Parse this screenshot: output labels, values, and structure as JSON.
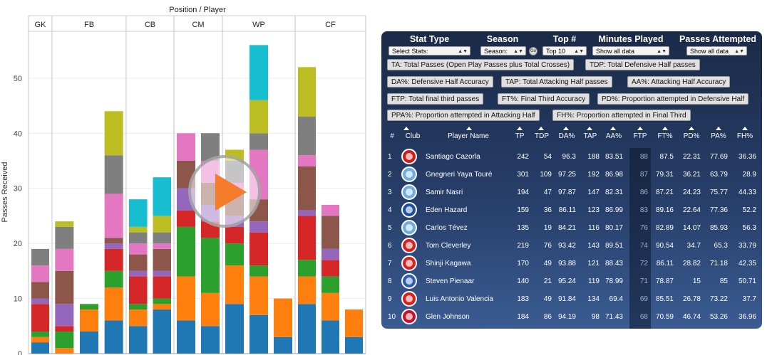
{
  "chart": {
    "header": "Position  /  Player",
    "ylabel": "Passes Received",
    "positions": [
      "GK",
      "FB",
      "CB",
      "CM",
      "WP",
      "CF"
    ],
    "yticks": [
      "0",
      "10",
      "20",
      "30",
      "40",
      "50"
    ]
  },
  "chart_data": {
    "type": "bar",
    "stacked": true,
    "title": "Position  /  Player",
    "ylabel": "Passes Received",
    "ylim": [
      0,
      58
    ],
    "groups": [
      "GK",
      "FB",
      "CB",
      "CM",
      "WP",
      "CF"
    ],
    "bars": [
      {
        "group": "GK",
        "segments": [
          2,
          1,
          1,
          5,
          1,
          3,
          3,
          3
        ]
      },
      {
        "group": "FB",
        "segments": [
          0,
          1,
          3,
          1,
          4,
          6,
          4,
          4,
          1
        ]
      },
      {
        "group": "FB",
        "segments": [
          4,
          4,
          1
        ]
      },
      {
        "group": "FB",
        "segments": [
          6,
          6,
          3,
          4,
          1,
          1,
          8,
          7,
          8
        ]
      },
      {
        "group": "CB",
        "segments": [
          5,
          3,
          1,
          5,
          1,
          3,
          2,
          2,
          1,
          5
        ]
      },
      {
        "group": "CB",
        "segments": [
          8,
          1,
          1,
          4,
          1,
          4,
          1,
          2,
          3,
          7
        ]
      },
      {
        "group": "CM",
        "segments": [
          6,
          8,
          9,
          3,
          4,
          5,
          5
        ]
      },
      {
        "group": "CM",
        "segments": [
          5,
          6,
          10,
          3,
          3,
          4,
          4,
          5
        ]
      },
      {
        "group": "WP",
        "segments": [
          9,
          7,
          4,
          3,
          2,
          4,
          2,
          4,
          2
        ]
      },
      {
        "group": "WP",
        "segments": [
          7,
          7,
          2,
          6,
          2,
          4,
          9,
          3,
          6,
          10
        ]
      },
      {
        "group": "WP",
        "segments": [
          3,
          7
        ]
      },
      {
        "group": "CF",
        "segments": [
          9,
          5,
          3,
          8,
          1,
          8,
          2,
          7,
          9
        ]
      },
      {
        "group": "CF",
        "segments": [
          6,
          5,
          3,
          3,
          2,
          6,
          2
        ]
      },
      {
        "group": "CF",
        "segments": [
          3,
          5
        ]
      }
    ],
    "palette": [
      "#1f77b4",
      "#ff7f0e",
      "#2ca02c",
      "#d62728",
      "#9467bd",
      "#8c564b",
      "#e377c2",
      "#7f7f7f",
      "#bcbd22",
      "#17becf"
    ]
  },
  "panel": {
    "controls": {
      "stat_type": {
        "title": "Stat Type",
        "value": "Select Stats:"
      },
      "season": {
        "title": "Season",
        "value": "Season:"
      },
      "go": "Go",
      "top": {
        "title": "Top #",
        "value": "Top 10"
      },
      "minutes": {
        "title": "Minutes Played",
        "value": "Show all data"
      },
      "passes": {
        "title": "Passes Attempted",
        "value": "Show all data"
      }
    },
    "legend": [
      "TA: Total Passes (Open Play Passes plus Total Crosses)",
      "TDP: Total Defensive Half passes",
      "DA%: Defensive Half Accuracy",
      "TAP: Total Attacking Half passes",
      "AA%: Attacking Half Accuracy",
      "FTP: Total final third passes",
      "FT%: Final Third Accuracy",
      "PD%: Proportion attempted in Defensive Half",
      "PPA%: Proportion attempted in Attacking Half",
      "FH%: Proportion attempted in Final Third"
    ],
    "columns": [
      "#",
      "Club",
      "Player Name",
      "TP",
      "TDP",
      "DA%",
      "TAP",
      "AA%",
      "FTP",
      "FT%",
      "PD%",
      "PA%",
      "FH%"
    ],
    "rows": [
      {
        "rank": "1",
        "club_color": "#d01b1b",
        "name": "Santiago Cazorla",
        "tp": "242",
        "tdp": "54",
        "da": "96.3",
        "tap": "188",
        "aa": "83.51",
        "ftp": "88",
        "ft": "87.5",
        "pd": "22.31",
        "pa": "77.69",
        "fh": "36.36"
      },
      {
        "rank": "2",
        "club_color": "#6caee0",
        "name": "Gnegneri Yaya Touré",
        "tp": "301",
        "tdp": "109",
        "da": "97.25",
        "tap": "192",
        "aa": "86.98",
        "ftp": "87",
        "ft": "79.31",
        "pd": "36.21",
        "pa": "63.79",
        "fh": "28.9"
      },
      {
        "rank": "3",
        "club_color": "#6caee0",
        "name": "Samir Nasri",
        "tp": "194",
        "tdp": "47",
        "da": "97.87",
        "tap": "147",
        "aa": "82.31",
        "ftp": "86",
        "ft": "87.21",
        "pd": "24.23",
        "pa": "75.77",
        "fh": "44.33"
      },
      {
        "rank": "4",
        "club_color": "#1e4fa0",
        "name": "Eden Hazard",
        "tp": "159",
        "tdp": "36",
        "da": "86.11",
        "tap": "123",
        "aa": "86.99",
        "ftp": "83",
        "ft": "89.16",
        "pd": "22.64",
        "pa": "77.36",
        "fh": "52.2"
      },
      {
        "rank": "5",
        "club_color": "#6caee0",
        "name": "Carlos Tévez",
        "tp": "135",
        "tdp": "19",
        "da": "84.21",
        "tap": "116",
        "aa": "80.17",
        "ftp": "76",
        "ft": "82.89",
        "pd": "14.07",
        "pa": "85.93",
        "fh": "56.3"
      },
      {
        "rank": "6",
        "club_color": "#da1f1f",
        "name": "Tom Cleverley",
        "tp": "219",
        "tdp": "76",
        "da": "93.42",
        "tap": "143",
        "aa": "89.51",
        "ftp": "74",
        "ft": "90.54",
        "pd": "34.7",
        "pa": "65.3",
        "fh": "33.79"
      },
      {
        "rank": "7",
        "club_color": "#da1f1f",
        "name": "Shinji Kagawa",
        "tp": "170",
        "tdp": "49",
        "da": "93.88",
        "tap": "121",
        "aa": "88.43",
        "ftp": "72",
        "ft": "86.11",
        "pd": "28.82",
        "pa": "71.18",
        "fh": "42.35"
      },
      {
        "rank": "8",
        "club_color": "#2a5db0",
        "name": "Steven Pienaar",
        "tp": "140",
        "tdp": "21",
        "da": "95.24",
        "tap": "119",
        "aa": "78.99",
        "ftp": "71",
        "ft": "78.87",
        "pd": "15",
        "pa": "85",
        "fh": "50.71"
      },
      {
        "rank": "9",
        "club_color": "#da1f1f",
        "name": "Luis Antonio Valencia",
        "tp": "183",
        "tdp": "49",
        "da": "91.84",
        "tap": "134",
        "aa": "69.4",
        "ftp": "69",
        "ft": "85.51",
        "pd": "26.78",
        "pa": "73.22",
        "fh": "37.7"
      },
      {
        "rank": "10",
        "club_color": "#c8102e",
        "name": "Glen Johnson",
        "tp": "184",
        "tdp": "86",
        "da": "94.19",
        "tap": "98",
        "aa": "71.43",
        "ftp": "68",
        "ft": "70.59",
        "pd": "46.74",
        "pa": "53.26",
        "fh": "36.96"
      }
    ]
  }
}
